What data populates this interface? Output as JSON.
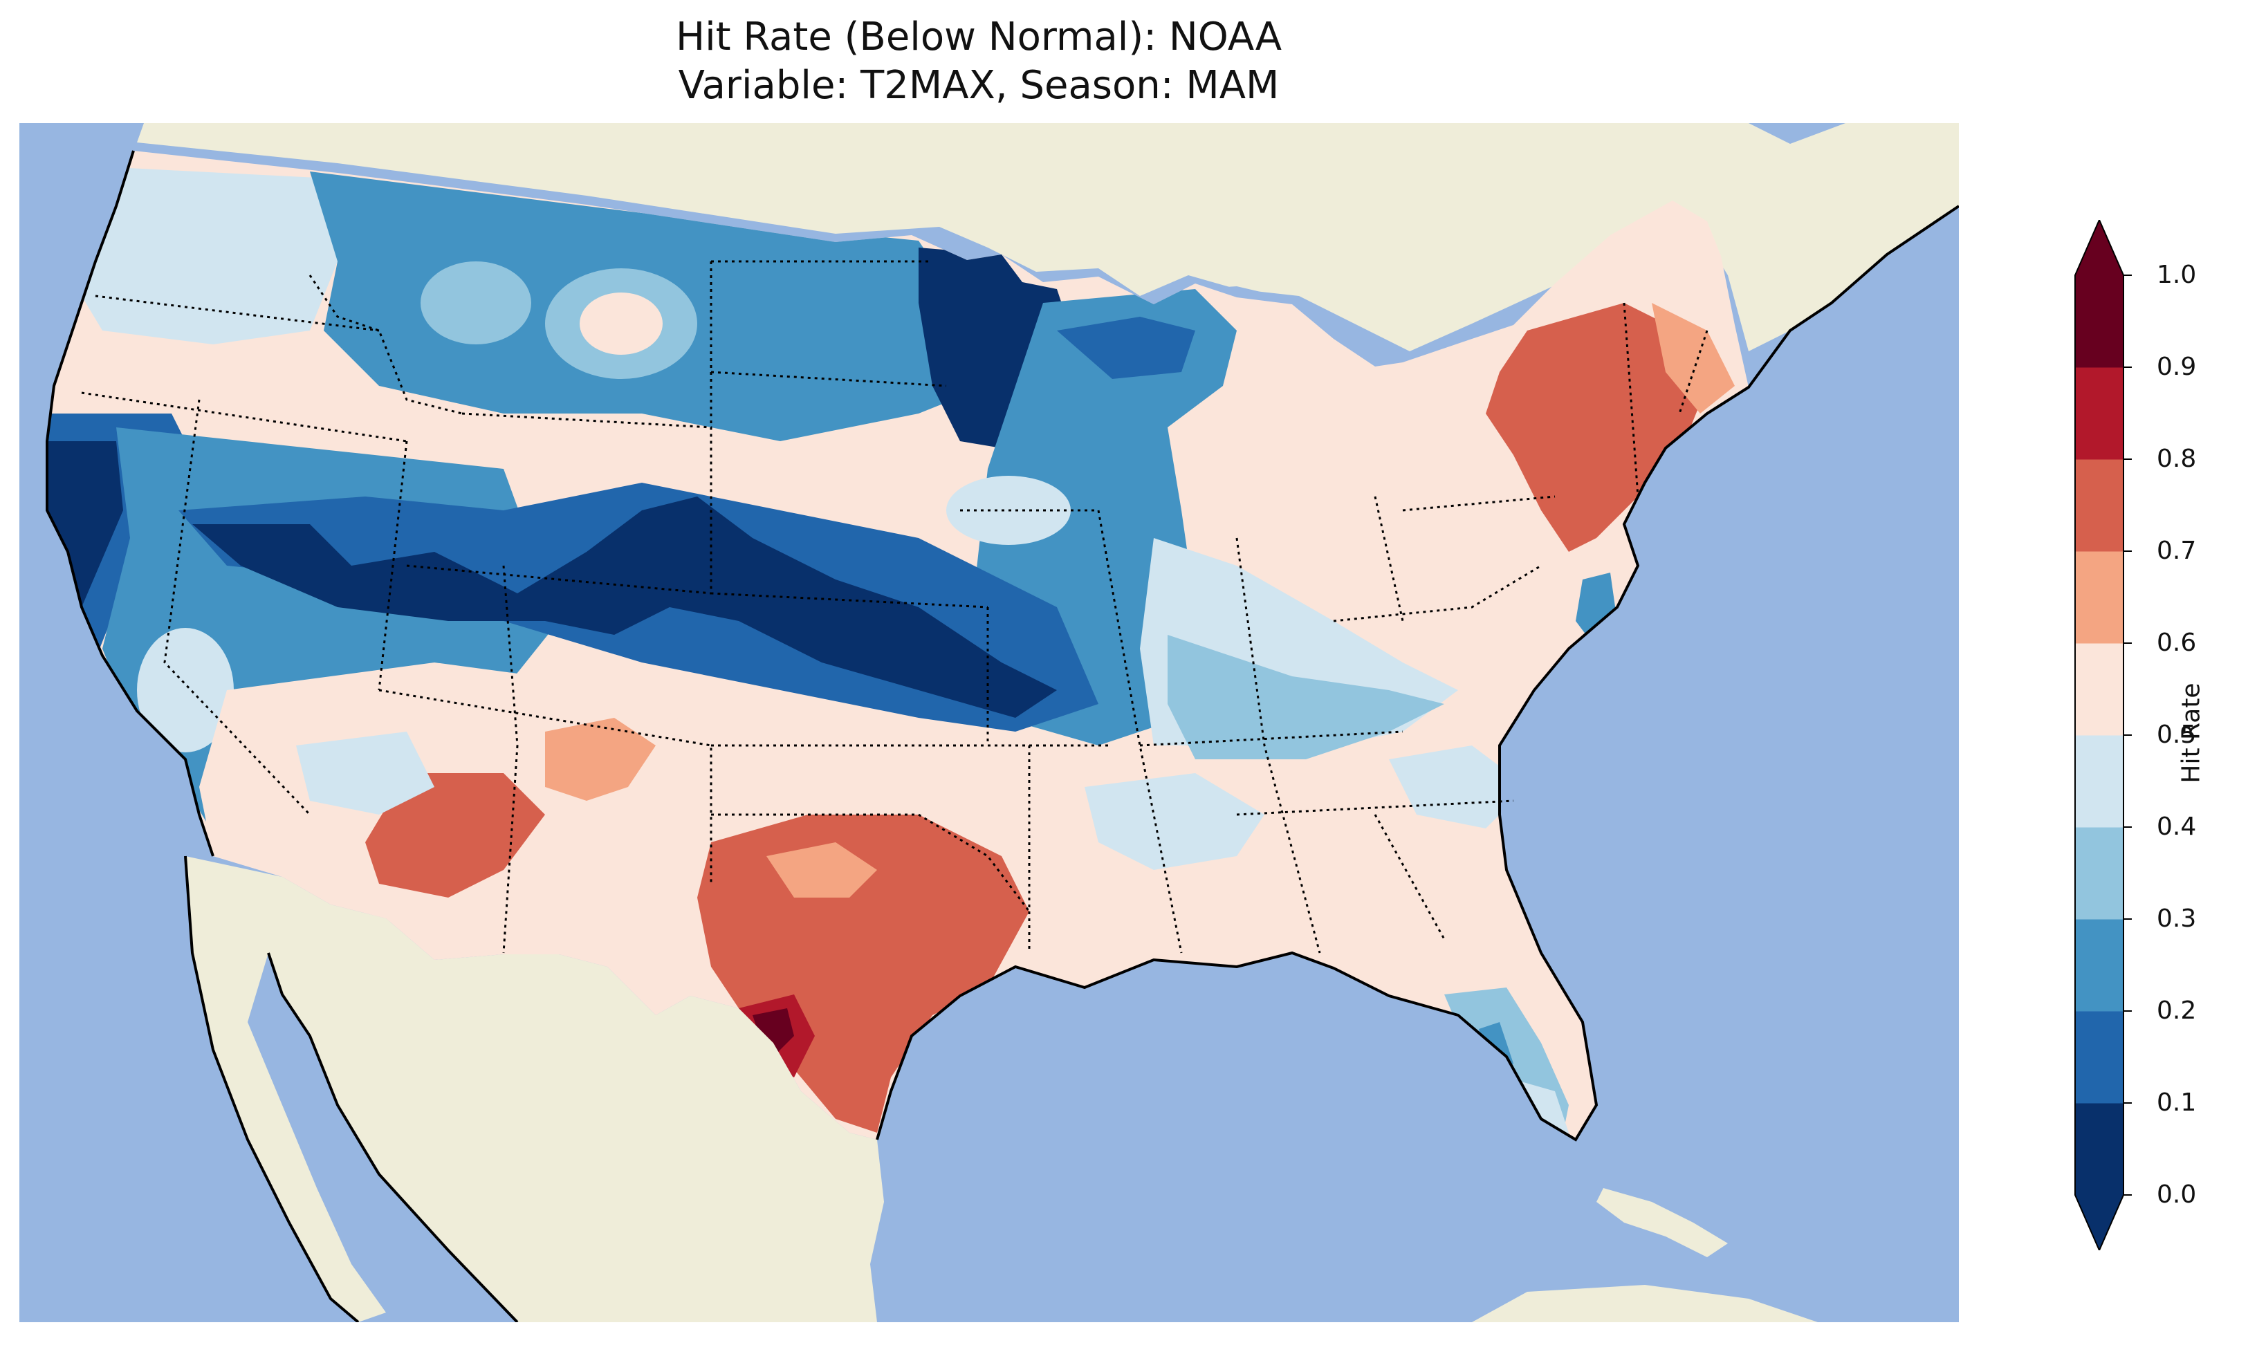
{
  "title_line1": "Hit Rate (Below Normal): NOAA",
  "title_line2": "Variable: T2MAX, Season: MAM",
  "colorbar": {
    "label": "Hit Rate",
    "ticks": [
      "0.0",
      "0.1",
      "0.2",
      "0.3",
      "0.4",
      "0.5",
      "0.6",
      "0.7",
      "0.8",
      "0.9",
      "1.0"
    ],
    "colors": [
      "#08306b",
      "#2166ac",
      "#4393c3",
      "#92c5de",
      "#d1e5f0",
      "#fbe5da",
      "#f4a582",
      "#d6604d",
      "#b2182b",
      "#67001f"
    ],
    "extend": "both"
  },
  "map_colors": {
    "ocean": "#97b6e1",
    "land": "#efedd9",
    "lakes": "#97b6e1"
  },
  "regions": [
    {
      "name": "pacific-northwest",
      "value": 0.45
    },
    {
      "name": "northern-rockies",
      "value": 0.25
    },
    {
      "name": "northern-plains",
      "value": 0.25
    },
    {
      "name": "minnesota",
      "value": 0.05
    },
    {
      "name": "central-rockies",
      "value": 0.05
    },
    {
      "name": "kansas-missouri",
      "value": 0.05
    },
    {
      "name": "california-nevada",
      "value": 0.25
    },
    {
      "name": "midwest",
      "value": 0.25
    },
    {
      "name": "ohio-valley",
      "value": 0.45
    },
    {
      "name": "southwest",
      "value": 0.55
    },
    {
      "name": "arizona-new-mexico",
      "value": 0.75
    },
    {
      "name": "texas",
      "value": 0.75
    },
    {
      "name": "south-texas",
      "value": 0.95
    },
    {
      "name": "southeast",
      "value": 0.55
    },
    {
      "name": "florida",
      "value": 0.35
    },
    {
      "name": "northeast",
      "value": 0.55
    },
    {
      "name": "new-york-new-england",
      "value": 0.75
    }
  ]
}
